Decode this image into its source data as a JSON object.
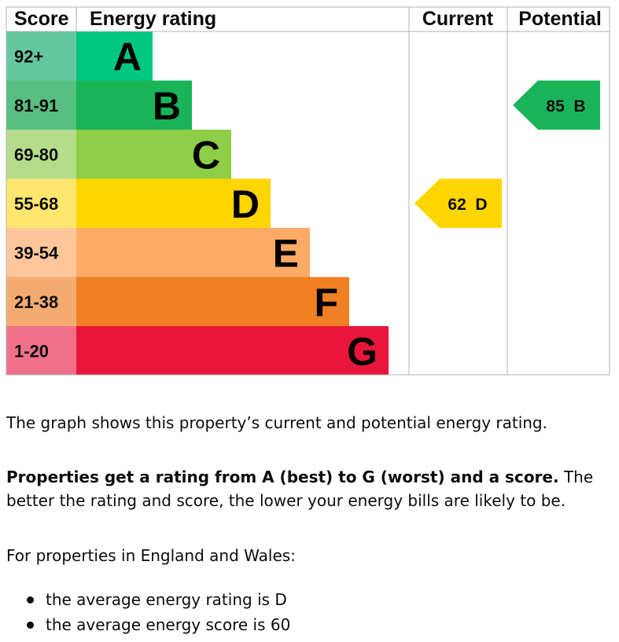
{
  "chart_data": {
    "type": "bar",
    "headers": {
      "score": "Score",
      "rating": "Energy rating",
      "current": "Current",
      "potential": "Potential"
    },
    "bands": [
      {
        "letter": "A",
        "range": "92+",
        "color": "#00c781",
        "label_bg": "#64c7a0"
      },
      {
        "letter": "B",
        "range": "81-91",
        "color": "#19b459",
        "label_bg": "#58be81"
      },
      {
        "letter": "C",
        "range": "69-80",
        "color": "#8dce46",
        "label_bg": "#b5dc8c"
      },
      {
        "letter": "D",
        "range": "55-68",
        "color": "#ffd500",
        "label_bg": "#ffe66e"
      },
      {
        "letter": "E",
        "range": "39-54",
        "color": "#fcaa65",
        "label_bg": "#fdc79b"
      },
      {
        "letter": "F",
        "range": "21-38",
        "color": "#ef8023",
        "label_bg": "#f4ab6f"
      },
      {
        "letter": "G",
        "range": "1-20",
        "color": "#e9153b",
        "label_bg": "#f0708a"
      }
    ],
    "current": {
      "score": 62,
      "band": "D",
      "label": "62  D"
    },
    "potential": {
      "score": 85,
      "band": "B",
      "label": "85  B"
    }
  },
  "text": {
    "p1": "The graph shows this property’s current and potential energy rating.",
    "p2_bold": "Properties get a rating from A (best) to G (worst) and a score.",
    "p2_rest": " The better the rating and score, the lower your energy bills are likely to be.",
    "p3": "For properties in England and Wales:",
    "bullets": [
      "the average energy rating is D",
      "the average energy score is 60"
    ]
  }
}
